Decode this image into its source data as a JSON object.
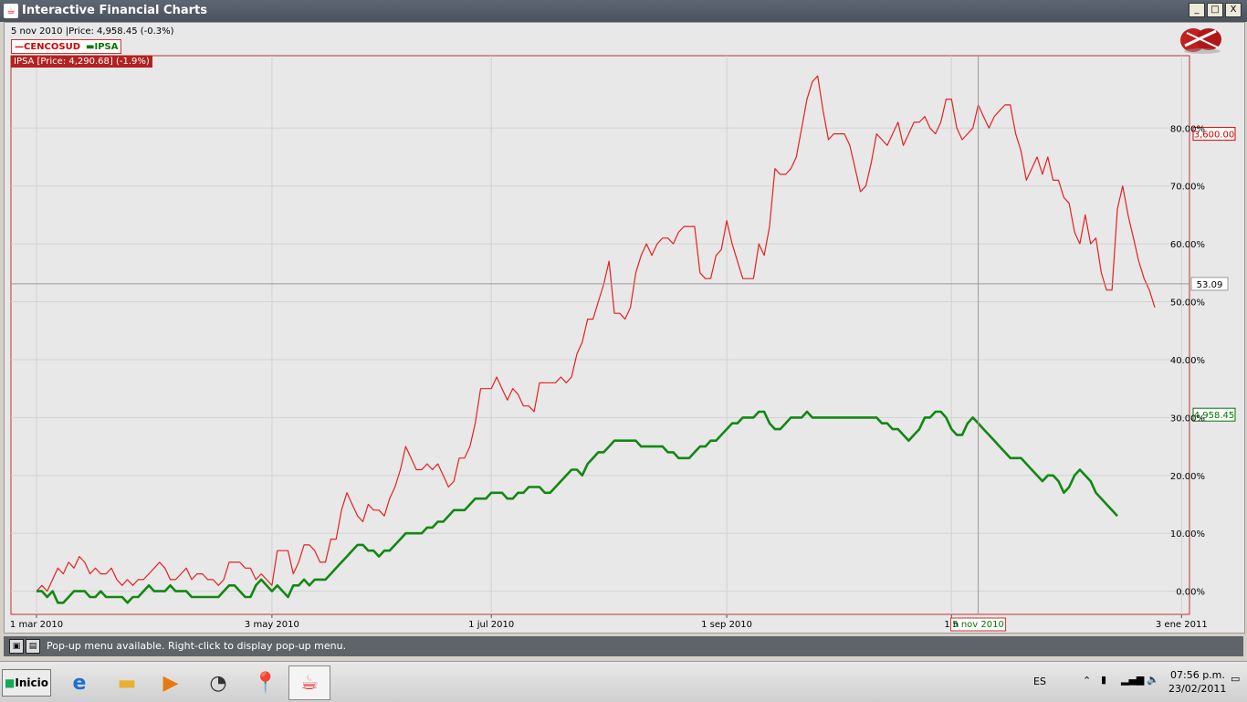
{
  "window": {
    "title": "Interactive Financial Charts",
    "min_btn": "_",
    "max_btn": "□",
    "close_btn": "X"
  },
  "info": {
    "line": "5 nov 2010 |Price: 4,958.45 (-0.3%)"
  },
  "legend": {
    "red_label": "CENCOSUD",
    "green_label": "IPSA"
  },
  "tooltip": "IPSA [Price: 4,290.68] (-1.9%)",
  "status": {
    "message": "Pop-up menu available. Right-click to display pop-up menu."
  },
  "taskbar": {
    "start_label": "Inicio",
    "lang": "ES",
    "time": "07:56 p.m.",
    "date": "23/02/2011"
  },
  "colors": {
    "cencosud": "#e52020",
    "ipsa": "#128812",
    "window_title": "#4e5660"
  },
  "icons": [
    "app-icon",
    "ie-icon",
    "folder-icon",
    "media-player-icon",
    "clock-icon",
    "pushpin-icon",
    "java-icon"
  ],
  "chart_data": {
    "type": "line",
    "x_labels": [
      "1 mar 2010",
      "3 may 2010",
      "1 jul 2010",
      "1 sep 2010",
      "1 n",
      "3 ene 2011"
    ],
    "x_label_positions": [
      0,
      44,
      85,
      129,
      171,
      214
    ],
    "y_ticks": [
      "0.00%",
      "10.00%",
      "20.00%",
      "30.00%",
      "40.00%",
      "50.00%",
      "60.00%",
      "70.00%",
      "80.00%"
    ],
    "y_tick_values": [
      0,
      10,
      20,
      30,
      40,
      50,
      60,
      70,
      80
    ],
    "ylim": [
      -4,
      92.5
    ],
    "crosshair": {
      "x_label": "5 nov 2010",
      "x_index": 176,
      "y_label": "53.09",
      "y_value": 53.09
    },
    "price_flags": [
      {
        "label": "3,600.00",
        "value": 79,
        "color": "#c00"
      },
      {
        "label": "4,958.45",
        "value": 30.5,
        "color": "#070"
      }
    ],
    "series": [
      {
        "name": "CENCOSUD",
        "color": "#e52020",
        "values": [
          0,
          1,
          0,
          2,
          4,
          3,
          5,
          4,
          6,
          5,
          3,
          4,
          3,
          3,
          4,
          2,
          1,
          2,
          1,
          2,
          2,
          3,
          4,
          5,
          4,
          2,
          2,
          3,
          4,
          2,
          3,
          3,
          2,
          2,
          1,
          2,
          5,
          5,
          5,
          4,
          4,
          2,
          3,
          2,
          1,
          7,
          7,
          7,
          3,
          5,
          8,
          8,
          7,
          5,
          5,
          9,
          9,
          14,
          17,
          15,
          13,
          12,
          15,
          14,
          14,
          13,
          16,
          18,
          21,
          25,
          23,
          21,
          21,
          22,
          21,
          22,
          20,
          18,
          19,
          23,
          23,
          25,
          29,
          35,
          35,
          35,
          37,
          35,
          33,
          35,
          34,
          32,
          32,
          31,
          36,
          36,
          36,
          36,
          37,
          36,
          37,
          41,
          43,
          47,
          47,
          50,
          53,
          57,
          48,
          48,
          47,
          49,
          55,
          58,
          60,
          58,
          60,
          61,
          61,
          60,
          62,
          63,
          63,
          63,
          55,
          54,
          54,
          58,
          59,
          64,
          60,
          57,
          54,
          54,
          54,
          60,
          58,
          63,
          73,
          72,
          72,
          73,
          75,
          80,
          85,
          88,
          89,
          83,
          78,
          79,
          79,
          79,
          77,
          73,
          69,
          70,
          74,
          79,
          78,
          77,
          79,
          81,
          77,
          79,
          81,
          81,
          82,
          80,
          79,
          81,
          85,
          85,
          80,
          78,
          79,
          80,
          84,
          82,
          80,
          82,
          83,
          84,
          84,
          79,
          76,
          71,
          73,
          75,
          72,
          75,
          71,
          71,
          68,
          67,
          62,
          60,
          65,
          60,
          61,
          55,
          52,
          52,
          66,
          70,
          65,
          61,
          57,
          54,
          52,
          49
        ]
      },
      {
        "name": "IPSA",
        "color": "#128812",
        "values": [
          0,
          0,
          -1,
          0,
          -2,
          -2,
          -1,
          0,
          0,
          0,
          -1,
          -1,
          0,
          -1,
          -1,
          -1,
          -1,
          -2,
          -1,
          -1,
          0,
          1,
          0,
          0,
          0,
          1,
          0,
          0,
          0,
          -1,
          -1,
          -1,
          -1,
          -1,
          -1,
          0,
          1,
          1,
          0,
          -1,
          -1,
          1,
          2,
          1,
          0,
          1,
          0,
          -1,
          1,
          1,
          2,
          1,
          2,
          2,
          2,
          3,
          4,
          5,
          6,
          7,
          8,
          8,
          7,
          7,
          6,
          7,
          7,
          8,
          9,
          10,
          10,
          10,
          10,
          11,
          11,
          12,
          12,
          13,
          14,
          14,
          14,
          15,
          16,
          16,
          16,
          17,
          17,
          17,
          16,
          16,
          17,
          17,
          18,
          18,
          18,
          17,
          17,
          18,
          19,
          20,
          21,
          21,
          20,
          22,
          23,
          24,
          24,
          25,
          26,
          26,
          26,
          26,
          26,
          25,
          25,
          25,
          25,
          25,
          24,
          24,
          23,
          23,
          23,
          24,
          25,
          25,
          26,
          26,
          27,
          28,
          29,
          29,
          30,
          30,
          30,
          31,
          31,
          29,
          28,
          28,
          29,
          30,
          30,
          30,
          31,
          30,
          30,
          30,
          30,
          30,
          30,
          30,
          30,
          30,
          30,
          30,
          30,
          30,
          29,
          29,
          28,
          28,
          27,
          26,
          27,
          28,
          30,
          30,
          31,
          31,
          30,
          28,
          27,
          27,
          29,
          30,
          29,
          28,
          27,
          26,
          25,
          24,
          23,
          23,
          23,
          22,
          21,
          20,
          19,
          20,
          20,
          19,
          17,
          18,
          20,
          21,
          20,
          19,
          17,
          16,
          15,
          14,
          13
        ]
      }
    ]
  }
}
